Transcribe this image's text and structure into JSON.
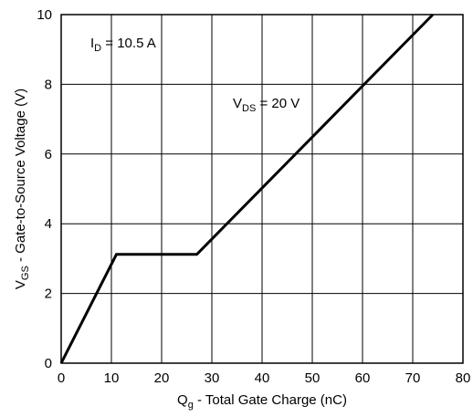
{
  "chart_data": {
    "type": "line",
    "title": "",
    "xlabel": {
      "main": "Q",
      "sub": "g",
      "rest": " - Total Gate Charge (nC)"
    },
    "ylabel": {
      "main": "V",
      "sub": "GS",
      "rest": " - Gate-to-Source Voltage (V)"
    },
    "xlim": [
      0,
      80
    ],
    "ylim": [
      0,
      10
    ],
    "xticks": [
      "0",
      "10",
      "20",
      "30",
      "40",
      "50",
      "60",
      "70",
      "80"
    ],
    "yticks": [
      "0",
      "2",
      "4",
      "6",
      "8",
      "10"
    ],
    "grid": true,
    "series": [
      {
        "x": [
          0,
          11,
          27,
          74
        ],
        "y": [
          0,
          3.12,
          3.12,
          10
        ]
      }
    ],
    "annotations": [
      {
        "main": "I",
        "sub": "D",
        "rest": " = 10.5 A"
      },
      {
        "main": "V",
        "sub": "DS",
        "rest": " = 20 V"
      }
    ]
  }
}
